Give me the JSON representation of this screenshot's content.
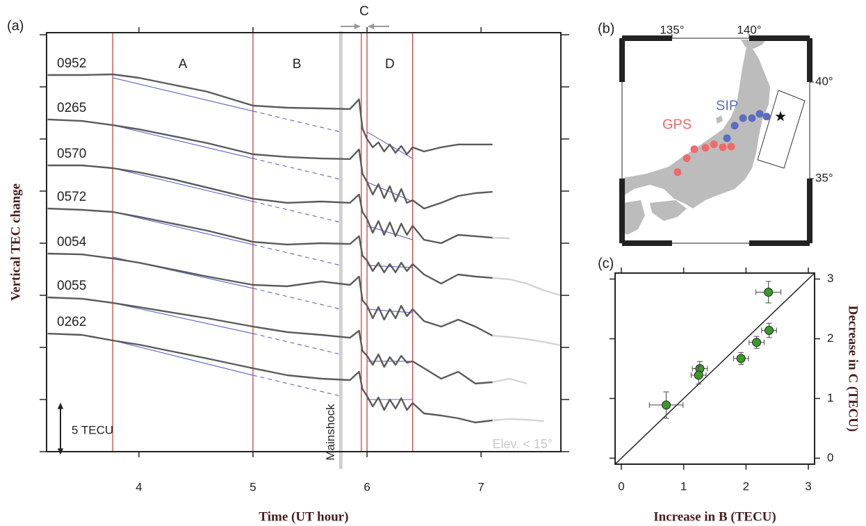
{
  "chart_data": [
    {
      "type": "line",
      "title": "(a)",
      "xlabel": "Time (UT hour)",
      "ylabel": "Vertical TEC change",
      "xlim": [
        3.19,
        7.7
      ],
      "xticks": [
        4,
        5,
        6,
        7
      ],
      "ylim": [
        0,
        40
      ],
      "yticks": [
        0,
        5,
        10,
        15,
        20,
        25,
        30,
        35,
        40
      ],
      "x": [
        3.2,
        3.5,
        3.77,
        4.0,
        4.3,
        4.6,
        5.0,
        5.3,
        5.6,
        5.85,
        5.93,
        5.96,
        6.0,
        6.05,
        6.1,
        6.15,
        6.2,
        6.25,
        6.3,
        6.35,
        6.4,
        6.5,
        6.65,
        6.8,
        6.95,
        7.1,
        7.25,
        7.4,
        7.55,
        7.7
      ],
      "trend_x": [
        3.77,
        5.0,
        5.77,
        6.0,
        6.4
      ],
      "trend_color": "#5a63c8",
      "vlines": [
        3.77,
        5.0,
        5.95,
        6.0,
        6.4
      ],
      "vline_color": "#c0392b",
      "mainshock": {
        "x": 5.77,
        "label": "Mainshock",
        "color": "#d0d0d0"
      },
      "regions": [
        "A",
        "B",
        "C",
        "D"
      ],
      "scale_bar": {
        "value": 5,
        "label": "5 TECU"
      },
      "annotation": "Elev. < 15°",
      "series": [
        {
          "name": "0952",
          "color": "#5a5a5a",
          "values": [
            36.13,
            36.13,
            36.2,
            35.87,
            35.2,
            34.53,
            33.2,
            33,
            32.93,
            32.87,
            33.8,
            31,
            30,
            29.2,
            29.67,
            28.8,
            29.47,
            28.67,
            29.33,
            28.53,
            29.2,
            28.8,
            29.2,
            29.47,
            29.47,
            29.47,
            null,
            null,
            null,
            null
          ],
          "trend": [
            35.87,
            32.67,
            30.67,
            30.67,
            28.13
          ]
        },
        {
          "name": "0265",
          "color": "#5a5a5a",
          "values": [
            31.87,
            31.73,
            31.33,
            30.93,
            30.27,
            29.6,
            28.53,
            28.27,
            28.13,
            28.07,
            29,
            26.67,
            25.87,
            24.67,
            25.67,
            24.33,
            25.47,
            24,
            25.2,
            23.87,
            24.13,
            23.33,
            23.87,
            24.53,
            24.8,
            24.93,
            null,
            null,
            null,
            null
          ],
          "trend": [
            31.33,
            28.13,
            26.13,
            25.87,
            24
          ]
        },
        {
          "name": "0570",
          "color": "#5a5a5a",
          "values": [
            27.47,
            27.47,
            27.2,
            26.8,
            26.13,
            25.33,
            24.27,
            23.87,
            24,
            23.87,
            24.67,
            23,
            22.33,
            21,
            22.13,
            20.8,
            22,
            20.67,
            21.87,
            20.8,
            21.67,
            20.33,
            20,
            20.8,
            20.67,
            20.53,
            null,
            null,
            null,
            null
          ],
          "trend": [
            27.2,
            24,
            22,
            21.67,
            20.33
          ]
        },
        {
          "name": "0572",
          "color": "#5a5a5a",
          "values": [
            23.33,
            23.2,
            23,
            22.53,
            21.87,
            21.2,
            20.13,
            19.87,
            20,
            19.93,
            20.67,
            18.8,
            18.33,
            17.33,
            18.13,
            17.2,
            18,
            17.2,
            18.13,
            17.33,
            18,
            17,
            16.13,
            17,
            16.8,
            16.67,
            null,
            null,
            null,
            null
          ],
          "trend": [
            23,
            19.87,
            17.87,
            17.87,
            17.67
          ]
        },
        {
          "name": "0054",
          "color": "#5a5a5a",
          "values": [
            19,
            18.93,
            18.53,
            18.13,
            17.47,
            16.8,
            16,
            15.87,
            16.33,
            16,
            16.8,
            14.53,
            14,
            12.8,
            13.87,
            12.67,
            13.67,
            12.8,
            14,
            13,
            13.67,
            12.53,
            12,
            12.67,
            12,
            11.13,
            null,
            null,
            null,
            null
          ],
          "trend": [
            18.67,
            15.67,
            13.67,
            13.67,
            13.33
          ]
        },
        {
          "name": "0055",
          "color": "#5a5a5a",
          "values": [
            14.8,
            14.67,
            14.27,
            13.87,
            13.33,
            12.8,
            12,
            11.47,
            11.2,
            10.93,
            11.6,
            9.67,
            9.2,
            8.33,
            9.33,
            8.13,
            9.07,
            8.33,
            9.2,
            8.53,
            8.67,
            8,
            7,
            7.67,
            6.53,
            6.67,
            null,
            null,
            null,
            null
          ],
          "trend": [
            14.27,
            11.33,
            9.33,
            8.67,
            8.67
          ]
        },
        {
          "name": "0262",
          "color": "#5a5a5a",
          "values": [
            11.33,
            11.2,
            10.67,
            10.27,
            9.6,
            8.93,
            8,
            7.33,
            7,
            6.87,
            7.67,
            6,
            5.33,
            4.33,
            5.2,
            4,
            5,
            4.13,
            5.13,
            4,
            4.67,
            3.67,
            3.47,
            3.2,
            2.8,
            3,
            null,
            null,
            null,
            null
          ],
          "trend": [
            10.67,
            7.33,
            5.33,
            5,
            5
          ]
        },
        {
          "color": "#d4d4d4",
          "x": [
            7.1,
            7.25
          ],
          "values": [
            20.53,
            20.47
          ]
        },
        {
          "color": "#d4d4d4",
          "x": [
            7.1,
            7.25,
            7.4,
            7.55,
            7.7
          ],
          "values": [
            16.67,
            16.53,
            16.13,
            15.47,
            15
          ]
        },
        {
          "color": "#d4d4d4",
          "x": [
            7.1,
            7.25,
            7.4,
            7.55,
            7.7
          ],
          "values": [
            11.13,
            11,
            10.8,
            10.53,
            10.2
          ]
        },
        {
          "color": "#d4d4d4",
          "x": [
            7.1,
            7.25,
            7.4
          ],
          "values": [
            6.67,
            7,
            6.53
          ]
        },
        {
          "color": "#d4d4d4",
          "x": [
            7.1,
            7.25,
            7.4,
            7.55
          ],
          "values": [
            3,
            3.13,
            3.07,
            2.93
          ]
        }
      ]
    },
    {
      "type": "map",
      "title": "(b)",
      "xlim": [
        131.76,
        143.92
      ],
      "ylim": [
        31.65,
        42.27
      ],
      "xticks": [
        {
          "value": 135,
          "label": "135°"
        },
        {
          "value": 140,
          "label": "140°"
        }
      ],
      "yticks": [
        {
          "value": 35,
          "label": "35°"
        },
        {
          "value": 40,
          "label": "40°"
        }
      ],
      "land_color": "#bcbcbc",
      "gps": {
        "label": "GPS",
        "color": "#f06a6a",
        "lon": [
          135.36,
          135.95,
          136.44,
          137.17,
          137.71,
          138.29,
          138.83
        ],
        "lat": [
          35.33,
          36.05,
          36.52,
          36.59,
          36.77,
          36.62,
          36.66
        ]
      },
      "sip": {
        "label": "SIP",
        "color": "#5b6dc0",
        "lon": [
          138.56,
          139.06,
          139.6,
          140.18,
          140.68,
          141.13
        ],
        "lat": [
          37.09,
          37.74,
          38.13,
          38.13,
          38.35,
          38.21
        ]
      },
      "epicenter": {
        "lon": 142.03,
        "lat": 38.21
      }
    },
    {
      "type": "scatter",
      "title": "(c)",
      "xlabel": "Increase in B (TECU)",
      "ylabel": "Decrease in C (TECU)",
      "x": [
        2.36,
        2.37,
        2.17,
        1.92,
        1.26,
        1.24,
        0.72
      ],
      "values": [
        2.78,
        2.14,
        1.94,
        1.67,
        1.5,
        1.39,
        0.89
      ],
      "xerr": [
        0.2,
        0.12,
        0.12,
        0.12,
        0.12,
        0.12,
        0.27
      ],
      "yerr": [
        0.18,
        0.12,
        0.1,
        0.1,
        0.12,
        0.15,
        0.22
      ],
      "color": "#3b9a2a",
      "xlim": [
        -0.1,
        3.1
      ],
      "ylim": [
        -0.1,
        3.1
      ],
      "xticks": [
        0,
        1,
        2,
        3
      ],
      "yticks": [
        0,
        1,
        2,
        3
      ],
      "diagonal": true
    }
  ]
}
